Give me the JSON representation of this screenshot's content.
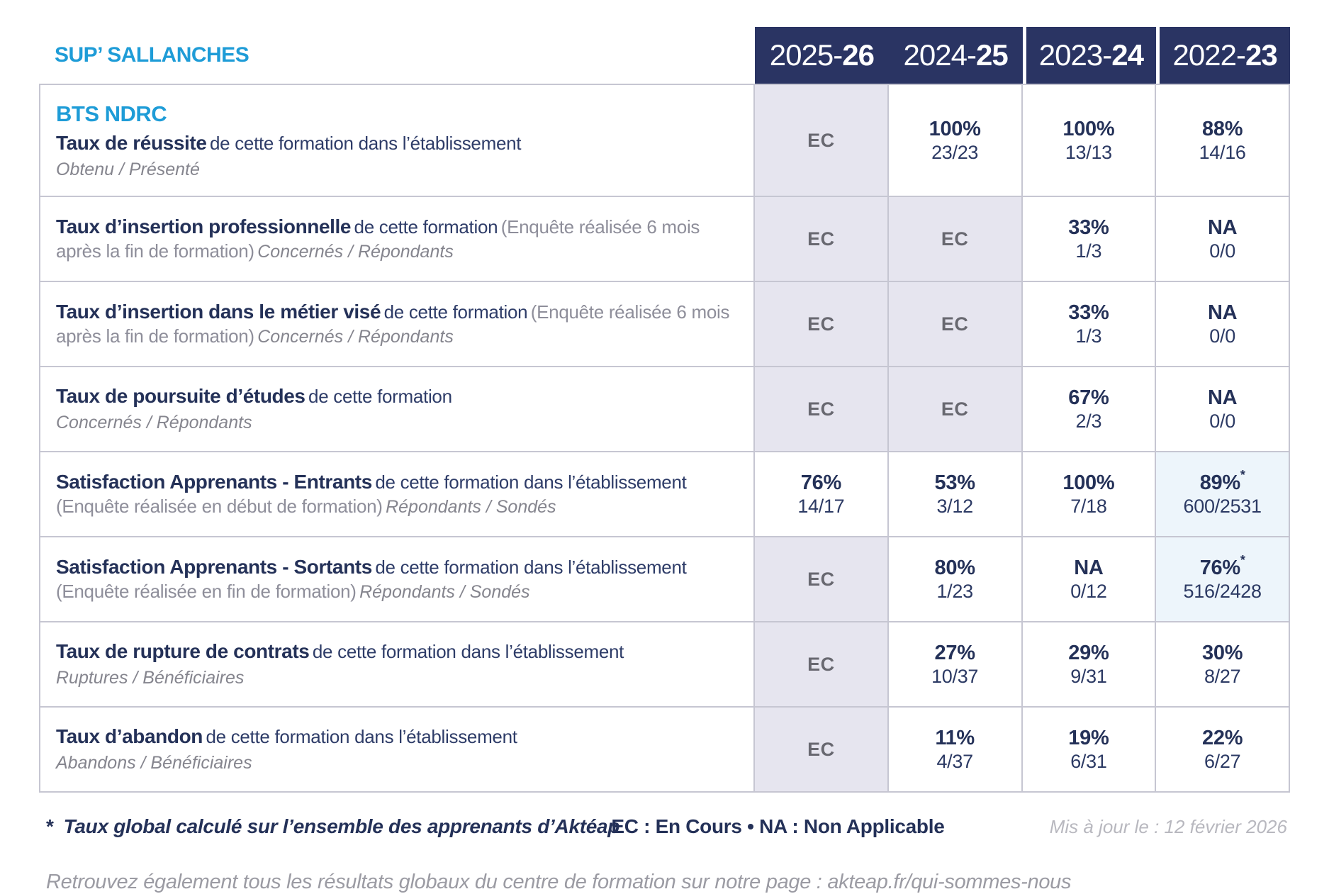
{
  "colors": {
    "accent_blue": "#1e9cd7",
    "navy": "#2a3463",
    "ec_background": "#e6e5ef",
    "highlight_background": "#edf5fb"
  },
  "title": "SUP’ SALLANCHES",
  "years": [
    {
      "prefix": "2025-",
      "suffix": "26"
    },
    {
      "prefix": "2024-",
      "suffix": "25"
    },
    {
      "prefix": "2023-",
      "suffix": "24"
    },
    {
      "prefix": "2022-",
      "suffix": "23"
    }
  ],
  "rows": [
    {
      "program": "BTS NDRC",
      "title": "Taux de réussite",
      "desc": "de cette formation dans l’établissement",
      "sub": "Obtenu / Présenté",
      "cells": [
        {
          "main": "EC"
        },
        {
          "main": "100%",
          "detail": "23/23"
        },
        {
          "main": "100%",
          "detail": "13/13"
        },
        {
          "main": "88%",
          "detail": "14/16"
        }
      ]
    },
    {
      "title": "Taux d’insertion professionnelle",
      "desc": "de cette formation",
      "paren": "(Enquête réalisée 6 mois après la fin de formation)",
      "sub": "Concernés / Répondants",
      "cells": [
        {
          "main": "EC"
        },
        {
          "main": "EC"
        },
        {
          "main": "33%",
          "detail": "1/3"
        },
        {
          "main": "NA",
          "detail": "0/0"
        }
      ]
    },
    {
      "title": "Taux d’insertion dans le métier visé",
      "desc": "de cette formation",
      "paren": "(Enquête réalisée 6 mois après la fin de formation)",
      "sub": "Concernés / Répondants",
      "cells": [
        {
          "main": "EC"
        },
        {
          "main": "EC"
        },
        {
          "main": "33%",
          "detail": "1/3"
        },
        {
          "main": "NA",
          "detail": "0/0"
        }
      ]
    },
    {
      "title": "Taux de poursuite d’études",
      "desc": "de cette formation",
      "sub": "Concernés / Répondants",
      "cells": [
        {
          "main": "EC"
        },
        {
          "main": "EC"
        },
        {
          "main": "67%",
          "detail": "2/3"
        },
        {
          "main": "NA",
          "detail": "0/0"
        }
      ]
    },
    {
      "title": "Satisfaction Apprenants - Entrants",
      "desc": "de cette formation dans l’établissement",
      "paren": "(Enquête réalisée en début de formation)",
      "sub": "Répondants / Sondés",
      "cells": [
        {
          "main": "76%",
          "detail": "14/17"
        },
        {
          "main": "53%",
          "detail": "3/12"
        },
        {
          "main": "100%",
          "detail": "7/18"
        },
        {
          "main": "89%",
          "star": "*",
          "detail": "600/2531"
        }
      ]
    },
    {
      "title": "Satisfaction Apprenants - Sortants",
      "desc": "de cette formation dans l’établissement",
      "paren": "(Enquête réalisée en fin de formation)",
      "sub": "Répondants / Sondés",
      "cells": [
        {
          "main": "EC"
        },
        {
          "main": "80%",
          "detail": "1/23"
        },
        {
          "main": "NA",
          "detail": "0/12"
        },
        {
          "main": "76%",
          "star": "*",
          "detail": "516/2428"
        }
      ]
    },
    {
      "title": "Taux de rupture de contrats",
      "desc": "de cette formation dans l’établissement",
      "sub": "Ruptures / Bénéficiaires",
      "cells": [
        {
          "main": "EC"
        },
        {
          "main": "27%",
          "detail": "10/37"
        },
        {
          "main": "29%",
          "detail": "9/31"
        },
        {
          "main": "30%",
          "detail": "8/27"
        }
      ]
    },
    {
      "title": "Taux d’abandon",
      "desc": "de cette formation dans l’établissement",
      "sub": "Abandons / Bénéficiaires",
      "cells": [
        {
          "main": "EC"
        },
        {
          "main": "11%",
          "detail": "4/37"
        },
        {
          "main": "19%",
          "detail": "6/31"
        },
        {
          "main": "22%",
          "detail": "6/27"
        }
      ]
    }
  ],
  "footer": {
    "star": "*",
    "note": "Taux global calculé sur l’ensemble des apprenants d’Aktéap",
    "legend": "EC : En Cours  •  NA : Non Applicable",
    "updated": "Mis à jour le : 12 février 2026"
  },
  "bottom_note": "Retrouvez également tous les résultats globaux du centre de formation sur notre page : akteap.fr/qui-sommes-nous"
}
